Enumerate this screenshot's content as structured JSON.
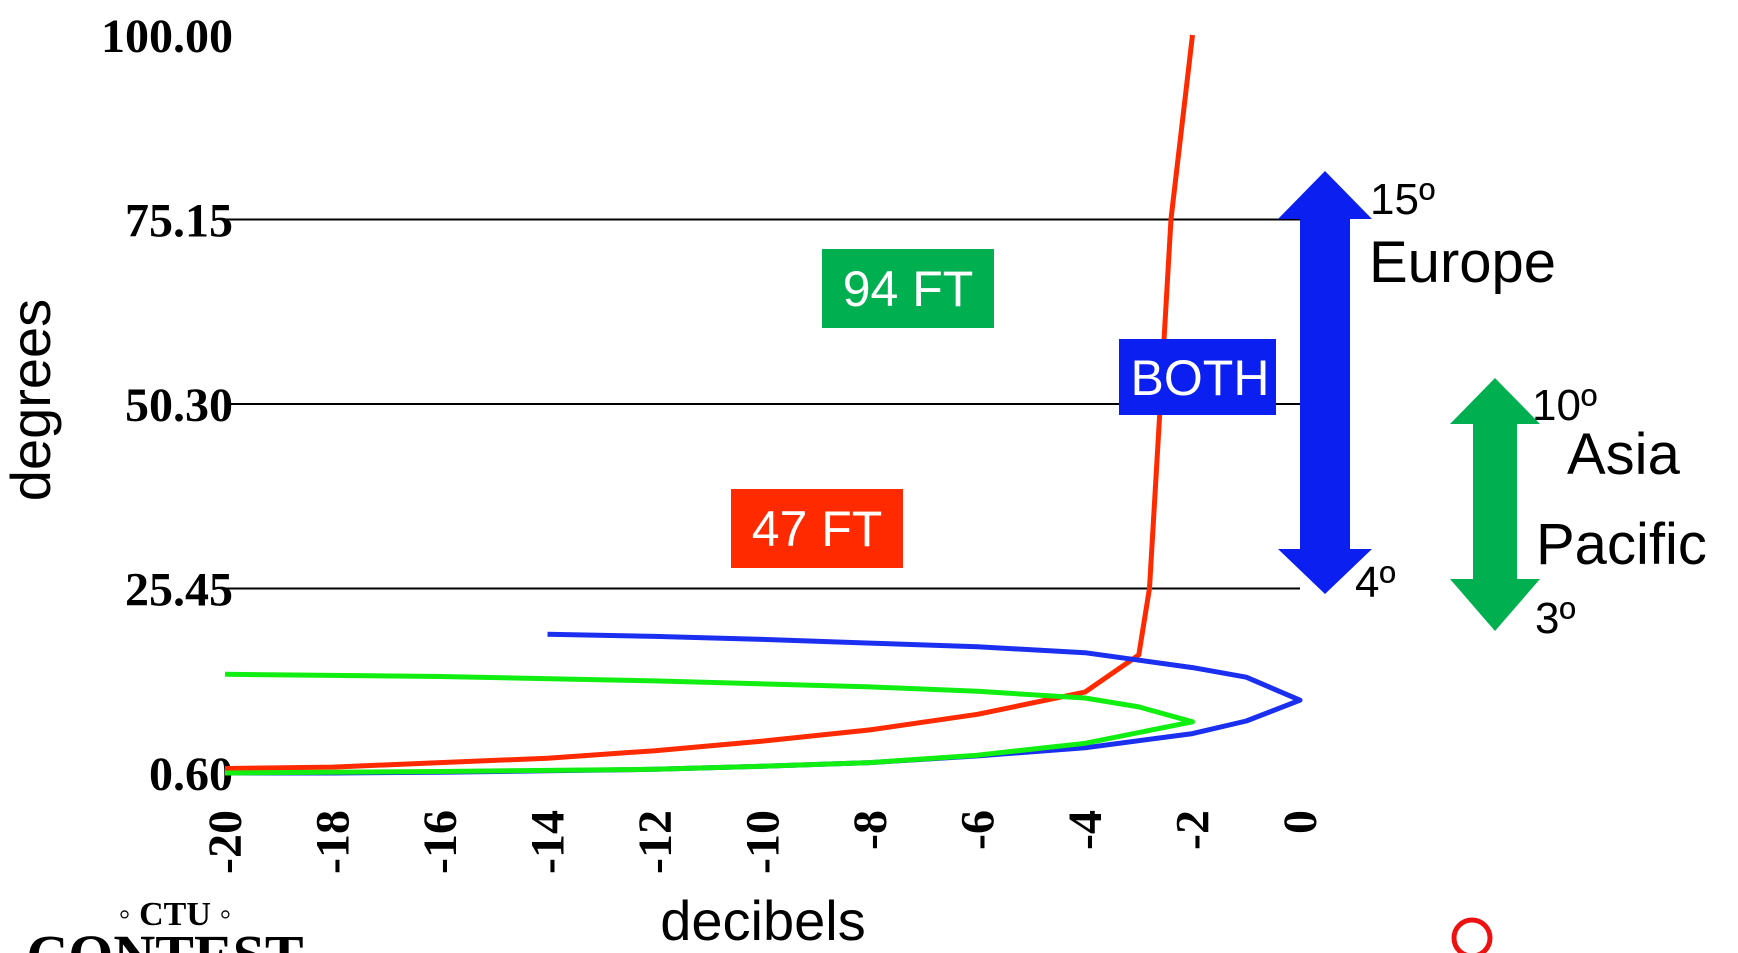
{
  "chart_data": {
    "type": "line",
    "xlabel": "decibels",
    "ylabel": "degrees",
    "x_ticks": [
      "-20",
      "-18",
      "-16",
      "-14",
      "-12",
      "-10",
      "-8",
      "-6",
      "-4",
      "-2",
      "0"
    ],
    "y_ticks": [
      "100.00",
      "75.15",
      "50.30",
      "25.45",
      "0.60"
    ],
    "xlim": [
      -20,
      0
    ],
    "ylim": [
      0.6,
      100.0
    ],
    "grid_lines_y": [
      75.15,
      50.3,
      25.45
    ],
    "series": [
      {
        "color": "#ff2a00",
        "points": [
          [
            -20,
            1.2
          ],
          [
            -18,
            1.4
          ],
          [
            -16,
            2.0
          ],
          [
            -14,
            2.6
          ],
          [
            -12,
            3.6
          ],
          [
            -10,
            4.9
          ],
          [
            -8,
            6.4
          ],
          [
            -6,
            8.5
          ],
          [
            -4,
            11.5
          ],
          [
            -3,
            16.5
          ],
          [
            -2.8,
            25.5
          ],
          [
            -2.6,
            50.3
          ],
          [
            -2.4,
            75.2
          ],
          [
            -2.0,
            100.0
          ]
        ]
      },
      {
        "color": "#1a2ff0",
        "points": [
          [
            -14,
            19.3
          ],
          [
            -12,
            19.0
          ],
          [
            -10,
            18.6
          ],
          [
            -8,
            18.1
          ],
          [
            -6,
            17.6
          ],
          [
            -4,
            16.8
          ],
          [
            -2,
            14.8
          ],
          [
            -1,
            13.5
          ],
          [
            0,
            10.4
          ],
          [
            -1,
            7.6
          ],
          [
            -2,
            5.9
          ],
          [
            -4,
            4.0
          ],
          [
            -6,
            2.9
          ],
          [
            -8,
            2.0
          ],
          [
            -10,
            1.5
          ],
          [
            -12,
            1.1
          ],
          [
            -14,
            0.9
          ],
          [
            -16,
            0.7
          ],
          [
            -18,
            0.6
          ],
          [
            -20,
            0.6
          ]
        ]
      },
      {
        "color": "#11ee11",
        "points": [
          [
            -20,
            13.9
          ],
          [
            -16,
            13.6
          ],
          [
            -12,
            13.0
          ],
          [
            -8,
            12.2
          ],
          [
            -6,
            11.6
          ],
          [
            -4,
            10.7
          ],
          [
            -3,
            9.5
          ],
          [
            -2,
            7.5
          ],
          [
            -4,
            4.6
          ],
          [
            -6,
            3.0
          ],
          [
            -8,
            2.0
          ],
          [
            -10,
            1.5
          ],
          [
            -12,
            1.1
          ],
          [
            -16,
            0.8
          ],
          [
            -20,
            0.6
          ]
        ]
      }
    ],
    "annotations": {
      "box_94ft": {
        "text": "94 FT",
        "color": "#00b050"
      },
      "box_47ft": {
        "text": "47 FT",
        "color": "#ff2a00"
      },
      "box_both": {
        "text": "BOTH",
        "color": "#0a1ff0"
      },
      "europe": {
        "top": "15º",
        "name": "Europe",
        "bottom": "4º",
        "color": "#0a1ff0"
      },
      "asia": {
        "top": "10º",
        "name_line1": "Asia",
        "name_line2": "Pacific",
        "bottom": "3º",
        "color": "#00b050"
      }
    }
  },
  "logo": {
    "line1": "◦ CTU ◦",
    "line2": "CONTEST"
  },
  "marker_color": "#ee1111"
}
